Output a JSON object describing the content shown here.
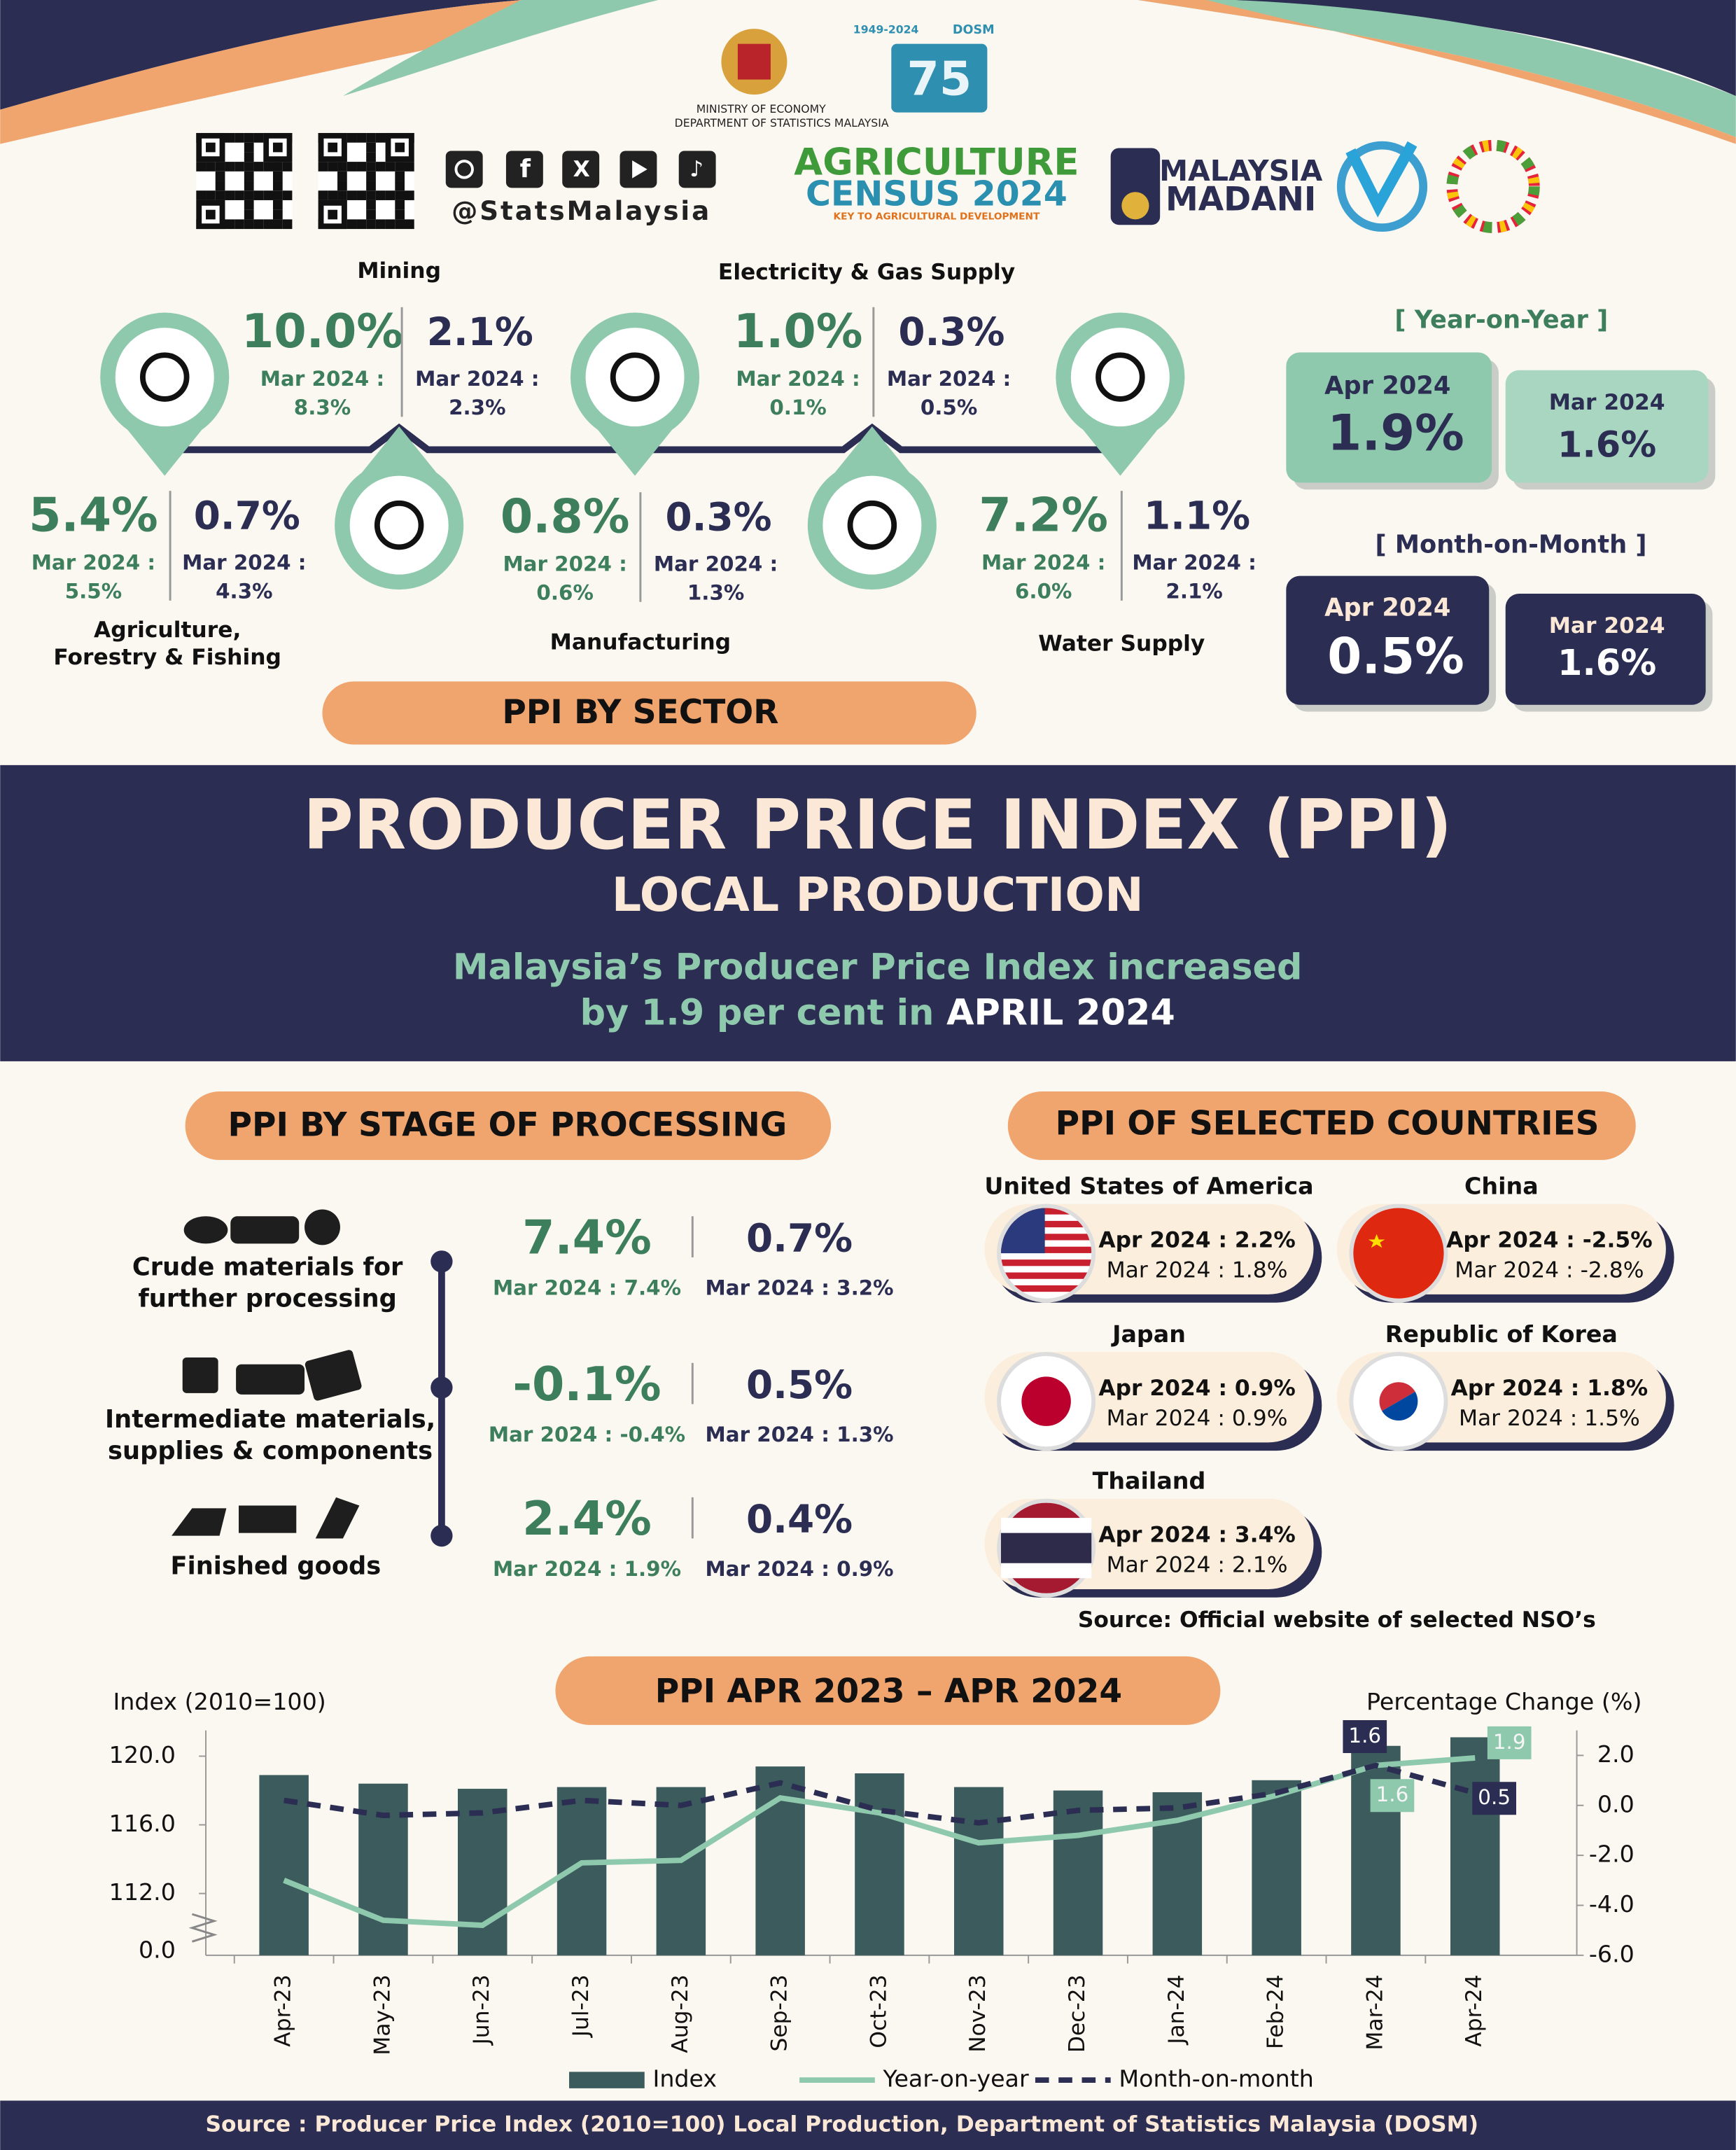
{
  "header": {
    "ministry": "MINISTRY OF ECONOMY",
    "department": "DEPARTMENT OF STATISTICS MALAYSIA",
    "dosm_years": "1949-2024",
    "dosm": "DOSM",
    "handle": "@StatsMalaysia",
    "census_line1": "AGRICULTURE",
    "census_line2": "CENSUS 2024",
    "census_tagline": "KEY TO AGRICULTURAL DEVELOPMENT",
    "madani_line1": "MALAYSIA",
    "madani_line2": "MADANI"
  },
  "sectors": {
    "title": "PPI BY SECTOR",
    "prev_label": "Mar 2024 :",
    "items": [
      {
        "name_lines": [
          "Mining"
        ],
        "yoy": "10.0%",
        "yoy_prev": "8.3%",
        "mom": "2.1%",
        "mom_prev": "2.3%"
      },
      {
        "name_lines": [
          "Electricity & Gas Supply"
        ],
        "yoy": "1.0%",
        "yoy_prev": "0.1%",
        "mom": "0.3%",
        "mom_prev": "0.5%"
      },
      {
        "name_lines": [
          "Agriculture,",
          "Forestry & Fishing"
        ],
        "yoy": "5.4%",
        "yoy_prev": "5.5%",
        "mom": "0.7%",
        "mom_prev": "4.3%"
      },
      {
        "name_lines": [
          "Manufacturing"
        ],
        "yoy": "0.8%",
        "yoy_prev": "0.6%",
        "mom": "0.3%",
        "mom_prev": "1.3%"
      },
      {
        "name_lines": [
          "Water Supply"
        ],
        "yoy": "7.2%",
        "yoy_prev": "6.0%",
        "mom": "1.1%",
        "mom_prev": "2.1%"
      }
    ]
  },
  "headline": {
    "yoy_title": "[ Year-on-Year ]",
    "mom_title": "[ Month-on-Month ]",
    "current": "Apr 2024",
    "previous": "Mar 2024",
    "yoy_current": "1.9%",
    "yoy_previous": "1.6%",
    "mom_current": "0.5%",
    "mom_previous": "1.6%"
  },
  "banner": {
    "title": "PRODUCER PRICE INDEX (PPI)",
    "subtitle": "LOCAL PRODUCTION",
    "summary_line1": "Malaysia’s Producer Price Index increased",
    "summary_line2": "by 1.9 per cent in",
    "summary_month": "APRIL 2024"
  },
  "stages": {
    "title": "PPI BY STAGE OF PROCESSING",
    "items": [
      {
        "name_lines": [
          "Crude materials for",
          "further processing"
        ],
        "yoy": "7.4%",
        "yoy_prev": "Mar 2024 : 7.4%",
        "mom": "0.7%",
        "mom_prev": "Mar 2024 : 3.2%"
      },
      {
        "name_lines": [
          "Intermediate materials,",
          "supplies & components"
        ],
        "yoy": "-0.1%",
        "yoy_prev": "Mar 2024 : -0.4%",
        "mom": "0.5%",
        "mom_prev": "Mar 2024 : 1.3%"
      },
      {
        "name_lines": [
          "Finished goods"
        ],
        "yoy": "2.4%",
        "yoy_prev": "Mar 2024 : 1.9%",
        "mom": "0.4%",
        "mom_prev": "Mar 2024 : 0.9%"
      }
    ]
  },
  "countries": {
    "title": "PPI OF SELECTED COUNTRIES",
    "items": [
      {
        "name": "United States of America",
        "current": "Apr 2024 : 2.2%",
        "previous": "Mar 2024 : 1.8%"
      },
      {
        "name": "China",
        "current": "Apr 2024 : -2.5%",
        "previous": "Mar 2024 : -2.8%"
      },
      {
        "name": "Japan",
        "current": "Apr 2024 : 0.9%",
        "previous": "Mar 2024 : 0.9%"
      },
      {
        "name": "Republic of Korea",
        "current": "Apr 2024 : 1.8%",
        "previous": "Mar 2024 : 1.5%"
      },
      {
        "name": "Thailand",
        "current": "Apr 2024 : 3.4%",
        "previous": "Mar 2024 : 2.1%"
      }
    ],
    "source": "Source: Official website of selected NSO’s"
  },
  "chart_data": {
    "type": "combo",
    "title": "PPI APR 2023 – APR 2024",
    "y_axis_label": "Index (2010=100)",
    "y2_axis_label": "Percentage Change (%)",
    "categories": [
      "Apr-23",
      "May-23",
      "Jun-23",
      "Jul-23",
      "Aug-23",
      "Sep-23",
      "Oct-23",
      "Nov-23",
      "Dec-23",
      "Jan-24",
      "Feb-24",
      "Mar-24",
      "Apr-24"
    ],
    "series": [
      {
        "name": "Index",
        "type": "bar",
        "color": "#3b5b5c",
        "values": [
          118.9,
          118.4,
          118.1,
          118.2,
          118.2,
          119.4,
          119.0,
          118.2,
          118.0,
          117.9,
          118.6,
          120.6,
          121.1
        ]
      },
      {
        "name": "Year-on-year",
        "type": "line",
        "axis": "y2",
        "color": "#8fc9ad",
        "values": [
          -3.0,
          -4.6,
          -4.8,
          -2.3,
          -2.2,
          0.3,
          -0.3,
          -1.5,
          -1.2,
          -0.6,
          0.4,
          1.6,
          1.9
        ],
        "value_labels": [
          null,
          null,
          null,
          null,
          null,
          null,
          null,
          null,
          null,
          null,
          null,
          "1.6",
          "1.9"
        ]
      },
      {
        "name": "Month-on-month",
        "type": "line",
        "axis": "y2",
        "dashed": true,
        "color": "#2b2d52",
        "values": [
          0.2,
          -0.4,
          -0.3,
          0.2,
          0.0,
          0.9,
          -0.2,
          -0.7,
          -0.2,
          -0.1,
          0.5,
          1.6,
          0.5
        ],
        "value_labels": [
          null,
          null,
          null,
          null,
          null,
          null,
          null,
          null,
          null,
          null,
          null,
          "1.6",
          "0.5"
        ]
      }
    ],
    "ylim": [
      108.4,
      121.5
    ],
    "yticks": [
      {
        "value": 112,
        "label": "112.0"
      },
      {
        "value": 116,
        "label": "116.0"
      },
      {
        "value": 120,
        "label": "120.0"
      }
    ],
    "y_break_label": "0.0",
    "y2lim": [
      -6,
      3
    ],
    "y2ticks": [
      {
        "value": -6,
        "label": "-6.0"
      },
      {
        "value": -4,
        "label": "-4.0"
      },
      {
        "value": -2,
        "label": "-2.0"
      },
      {
        "value": 0,
        "label": "0.0"
      },
      {
        "value": 2,
        "label": "2.0"
      }
    ],
    "grid": false
  },
  "footer": {
    "source": "Source : Producer Price Index (2010=100) Local Production, Department of Statistics Malaysia (DOSM)"
  }
}
